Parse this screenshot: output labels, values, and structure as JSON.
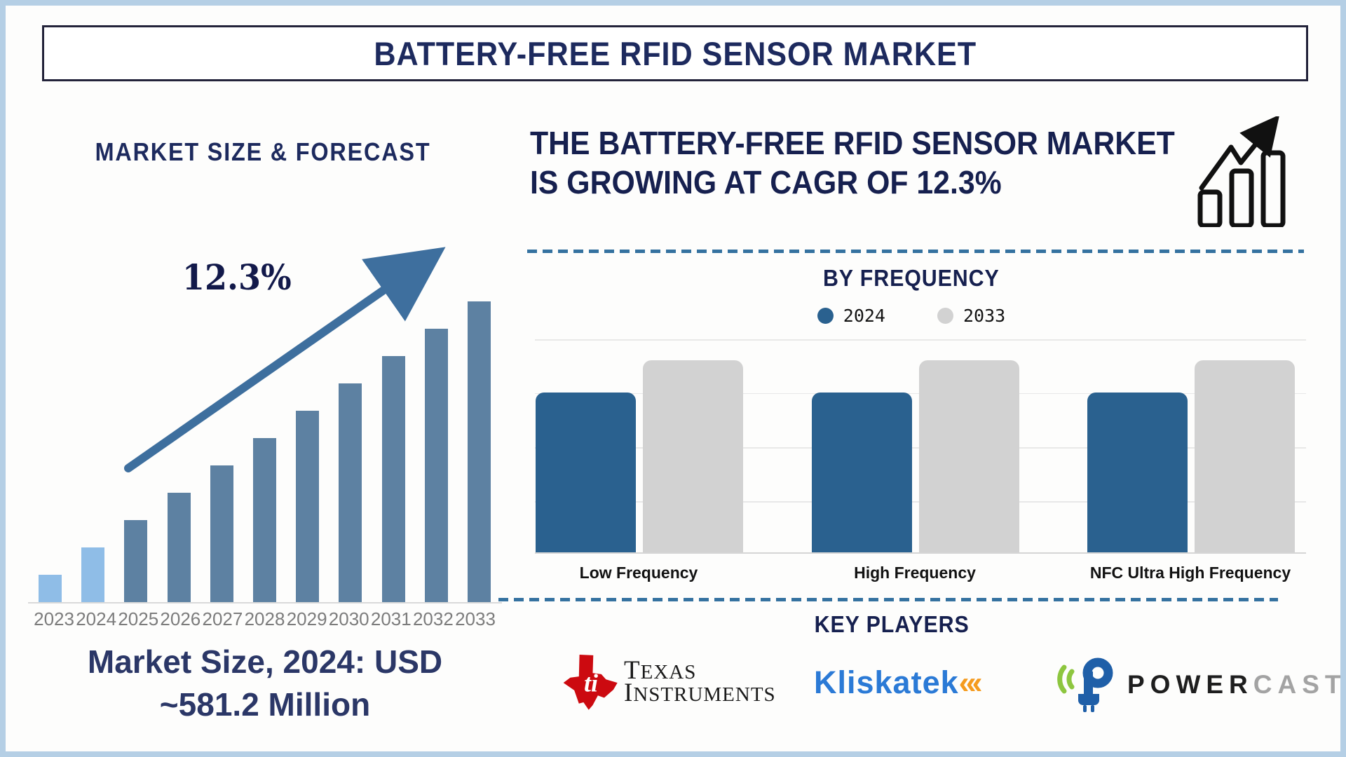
{
  "page": {
    "frame_color": "#b5cfe5",
    "background": "#fdfdfc",
    "accent_navy": "#1d2a5e",
    "accent_steel_blue": "#3572a0"
  },
  "title_bar": {
    "title": "BATTERY-FREE RFID SENSOR MARKET"
  },
  "left_panel": {
    "heading": "MARKET SIZE & FORECAST",
    "cagr_label": "12.3%",
    "market_size_line1": "Market Size, 2024: USD",
    "market_size_line2": "~581.2 Million"
  },
  "right_panel": {
    "headline_line1": "THE BATTERY-FREE RFID SENSOR MARKET",
    "headline_line2": "IS GROWING AT CAGR OF 12.3%",
    "by_frequency": {
      "title": "BY FREQUENCY",
      "legend": [
        {
          "label": "2024",
          "color": "#2a618f"
        },
        {
          "label": "2033",
          "color": "#d2d2d2"
        }
      ]
    },
    "key_players": {
      "title": "KEY PLAYERS",
      "players": [
        {
          "name": "Texas Instruments",
          "line1": "TEXAS",
          "line2": "INSTRUMENTS",
          "monogram": "ti",
          "brand_red": "#cc0a10"
        },
        {
          "name": "Kliskatek",
          "text": "Kliskatek",
          "chevrons": "«‹",
          "brand_blue": "#2b7ad6",
          "brand_orange": "#f59b1e"
        },
        {
          "name": "Powercast",
          "part1": "POWER",
          "part2": "CAST",
          "reg_mark": "®",
          "brand_blue": "#1f5fa8",
          "brand_green": "#8dc63f"
        }
      ]
    }
  },
  "chart_data": [
    {
      "type": "bar",
      "title": "MARKET SIZE & FORECAST",
      "categories": [
        "2023",
        "2024",
        "2025",
        "2026",
        "2027",
        "2028",
        "2029",
        "2030",
        "2031",
        "2032",
        "2033"
      ],
      "values": [
        9.1,
        18.2,
        27.3,
        36.4,
        45.5,
        54.5,
        63.6,
        72.7,
        81.8,
        90.9,
        100
      ],
      "values_note": "relative bar heights, % of tallest bar (no numeric axis shown)",
      "known_point": {
        "year": "2024",
        "value": "USD ~581.2 Million"
      },
      "cagr_pct": 12.3,
      "bar_colors": {
        "highlight_years": [
          "2023",
          "2024"
        ],
        "highlight": "#8fbde7",
        "default": "#5d81a2"
      },
      "annotation": {
        "text": "12.3%",
        "shape": "rising-arrow",
        "arrow_color": "#3e6f9e"
      },
      "grid": false,
      "legend_position": "none",
      "xlabel": "",
      "ylabel": ""
    },
    {
      "type": "bar",
      "title": "BY FREQUENCY",
      "categories": [
        "Low Frequency",
        "High Frequency",
        "NFC Ultra High Frequency"
      ],
      "series": [
        {
          "name": "2024",
          "color": "#2a618f",
          "values": [
            75,
            75,
            75
          ]
        },
        {
          "name": "2033",
          "color": "#d2d2d2",
          "values": [
            90,
            90,
            90
          ]
        }
      ],
      "values_note": "relative bar heights, % of plot height (no numeric axis shown)",
      "grid": true,
      "gridlines_pct": [
        0,
        25.3,
        50.7,
        76
      ],
      "legend_position": "top",
      "xlabel": "",
      "ylabel": ""
    }
  ]
}
